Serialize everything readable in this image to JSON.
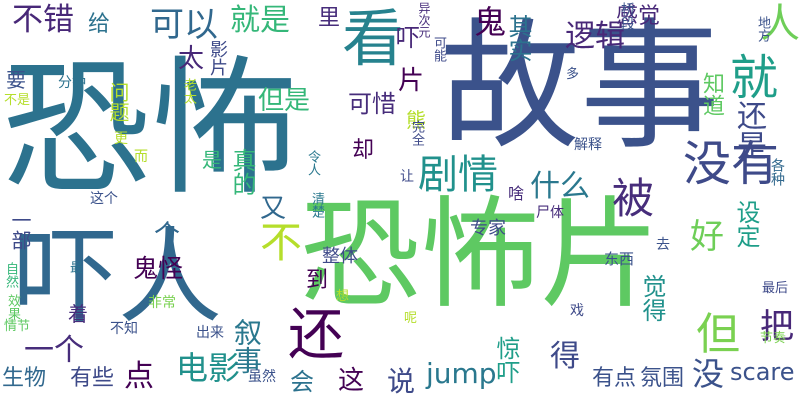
{
  "words": [
    {
      "text": "恐怖",
      "color": "#2c728e"
    },
    {
      "text": "故事",
      "color": "#3b528b"
    },
    {
      "text": "恐怖片",
      "color": "#5ec962"
    },
    {
      "text": "吓人",
      "color": "#31688e"
    },
    {
      "text": "看",
      "color": "#26828e"
    },
    {
      "text": "就",
      "color": "#1f9e89"
    },
    {
      "text": "没有",
      "color": "#3e4a89"
    },
    {
      "text": "还",
      "color": "#440154"
    },
    {
      "text": "剧情",
      "color": "#21918c"
    },
    {
      "text": "被",
      "color": "#472d7b"
    },
    {
      "text": "不",
      "color": "#b5de2b"
    },
    {
      "text": "可以",
      "color": "#31688e"
    },
    {
      "text": "就是",
      "color": "#35b779"
    },
    {
      "text": "不错",
      "color": "#482878"
    },
    {
      "text": "人",
      "color": "#6ece58"
    },
    {
      "text": "但",
      "color": "#7ad151"
    },
    {
      "text": "电影",
      "color": "#21918c"
    },
    {
      "text": "鬼",
      "color": "#440154"
    },
    {
      "text": "什么",
      "color": "#2a788e"
    },
    {
      "text": "逻辑",
      "color": "#482878"
    },
    {
      "text": "但是",
      "color": "#35b779"
    },
    {
      "text": "鬼怪",
      "color": "#440154"
    },
    {
      "text": "叙事",
      "color": "#2a788e"
    },
    {
      "text": "jump",
      "color": "#2a788e"
    },
    {
      "text": "scare",
      "color": "#3b528b"
    },
    {
      "text": "点",
      "color": "#440154"
    },
    {
      "text": "没",
      "color": "#3b528b"
    },
    {
      "text": "把",
      "color": "#482878"
    },
    {
      "text": "好",
      "color": "#6ece58"
    },
    {
      "text": "得",
      "color": "#3e4a89"
    },
    {
      "text": "说",
      "color": "#3e4a89"
    },
    {
      "text": "这",
      "color": "#440154"
    },
    {
      "text": "会",
      "color": "#2c728e"
    },
    {
      "text": "一个",
      "color": "#472d7b"
    },
    {
      "text": "有点",
      "color": "#3b528b"
    },
    {
      "text": "氛围",
      "color": "#3b528b"
    },
    {
      "text": "还是",
      "color": "#3e4a89"
    },
    {
      "text": "知道",
      "color": "#5ec962"
    },
    {
      "text": "太",
      "color": "#482878"
    },
    {
      "text": "真的",
      "color": "#35b779"
    },
    {
      "text": "生物",
      "color": "#31688e"
    },
    {
      "text": "有些",
      "color": "#3e4a89"
    },
    {
      "text": "可惜",
      "color": "#472d7b"
    },
    {
      "text": "感觉",
      "color": "#482878"
    },
    {
      "text": "其实",
      "color": "#2c728e"
    },
    {
      "text": "给",
      "color": "#2c728e"
    },
    {
      "text": "觉得",
      "color": "#21918c"
    },
    {
      "text": "设定",
      "color": "#1f9e89"
    },
    {
      "text": "吓",
      "color": "#482878"
    },
    {
      "text": "惊吓",
      "color": "#1f9e89"
    },
    {
      "text": "片",
      "color": "#440154"
    },
    {
      "text": "又",
      "color": "#31688e"
    },
    {
      "text": "个",
      "color": "#31688e"
    },
    {
      "text": "专家",
      "color": "#3e4a89"
    },
    {
      "text": "整体",
      "color": "#3e4a89"
    },
    {
      "text": "到",
      "color": "#440154"
    },
    {
      "text": "着",
      "color": "#472d7b"
    },
    {
      "text": "却",
      "color": "#440154"
    },
    {
      "text": "一部",
      "color": "#3e4a89"
    },
    {
      "text": "影片",
      "color": "#3e4a89"
    },
    {
      "text": "问题",
      "color": "#b5de2b"
    },
    {
      "text": "里",
      "color": "#472d7b"
    },
    {
      "text": "要",
      "color": "#3b528b"
    },
    {
      "text": "是",
      "color": "#35b779"
    },
    {
      "text": "熊",
      "color": "#b5de2b"
    },
    {
      "text": "异次元",
      "color": "#472d7b"
    },
    {
      "text": "桥段",
      "color": "#3b528b"
    },
    {
      "text": "地方",
      "color": "#3b528b"
    },
    {
      "text": "可能",
      "color": "#3e4a89"
    },
    {
      "text": "分钟",
      "color": "#2c728e"
    },
    {
      "text": "老太",
      "color": "#b5de2b"
    },
    {
      "text": "多",
      "color": "#3b528b"
    },
    {
      "text": "不是",
      "color": "#b5de2b"
    },
    {
      "text": "更",
      "color": "#b5de2b"
    },
    {
      "text": "而",
      "color": "#b5de2b"
    },
    {
      "text": "令人",
      "color": "#2a788e"
    },
    {
      "text": "完全",
      "color": "#3e4a89"
    },
    {
      "text": "解释",
      "color": "#3b528b"
    },
    {
      "text": "各种",
      "color": "#31688e"
    },
    {
      "text": "这个",
      "color": "#3b528b"
    },
    {
      "text": "清楚",
      "color": "#2a788e"
    },
    {
      "text": "啥",
      "color": "#472d7b"
    },
    {
      "text": "让",
      "color": "#3e4a89"
    },
    {
      "text": "尸体",
      "color": "#472d7b"
    },
    {
      "text": "去",
      "color": "#3b528b"
    },
    {
      "text": "东西",
      "color": "#3b528b"
    },
    {
      "text": "最",
      "color": "#2c728e"
    },
    {
      "text": "自然",
      "color": "#35b779"
    },
    {
      "text": "效果",
      "color": "#5ec962"
    },
    {
      "text": "情节",
      "color": "#5ec962"
    },
    {
      "text": "非常",
      "color": "#7ad151"
    },
    {
      "text": "想",
      "color": "#b5de2b"
    },
    {
      "text": "不知",
      "color": "#3b528b"
    },
    {
      "text": "出来",
      "color": "#3b528b"
    },
    {
      "text": "呢",
      "color": "#b5de2b"
    },
    {
      "text": "戏",
      "color": "#3e4a89"
    },
    {
      "text": "虽然",
      "color": "#3b528b"
    },
    {
      "text": "最后",
      "color": "#3e4a89"
    },
    {
      "text": "节奏",
      "color": "#7ad151"
    }
  ]
}
